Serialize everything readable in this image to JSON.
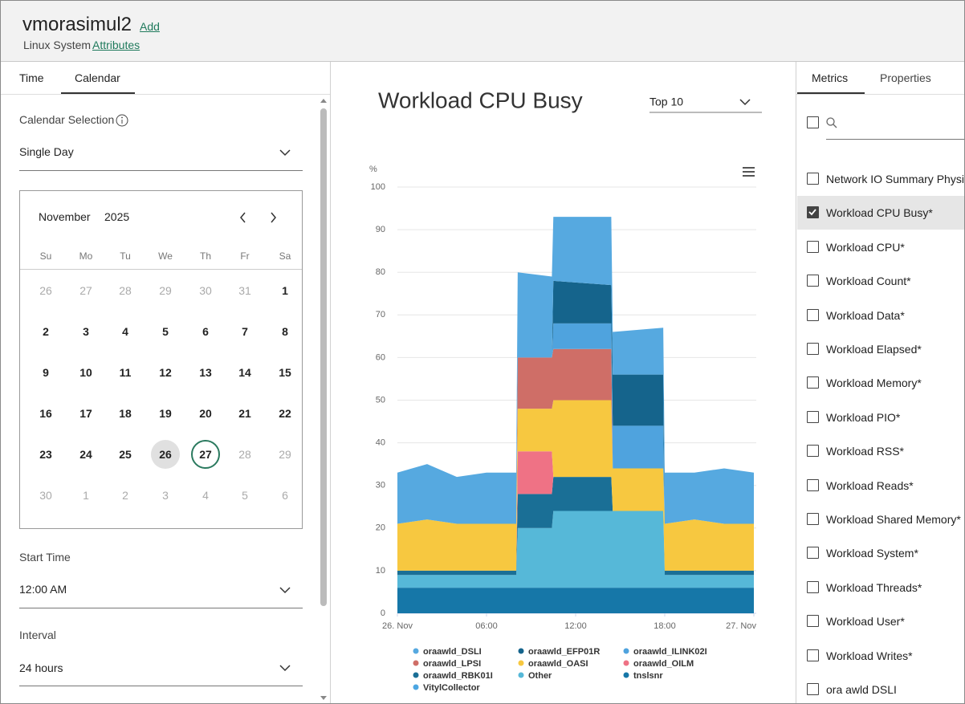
{
  "header": {
    "title": "vmorasimul2",
    "add_link": "Add",
    "subtitle": "Linux System",
    "attributes_link": "Attributes"
  },
  "left_tabs": [
    "Time",
    "Calendar"
  ],
  "calendar": {
    "selection_label": "Calendar Selection",
    "mode": "Single Day",
    "month": "November",
    "year": "2025",
    "weekdays": [
      "Su",
      "Mo",
      "Tu",
      "We",
      "Th",
      "Fr",
      "Sa"
    ],
    "weeks": [
      [
        "26",
        "27",
        "28",
        "29",
        "30",
        "31",
        "1"
      ],
      [
        "2",
        "3",
        "4",
        "5",
        "6",
        "7",
        "8"
      ],
      [
        "9",
        "10",
        "11",
        "12",
        "13",
        "14",
        "15"
      ],
      [
        "16",
        "17",
        "18",
        "19",
        "20",
        "21",
        "22"
      ],
      [
        "23",
        "24",
        "25",
        "26",
        "27",
        "28",
        "29"
      ],
      [
        "30",
        "1",
        "2",
        "3",
        "4",
        "5",
        "6"
      ]
    ]
  },
  "start_time": {
    "label": "Start Time",
    "value": "12:00 AM"
  },
  "interval": {
    "label": "Interval",
    "value": "24 hours"
  },
  "right_tabs": [
    "Metrics",
    "Properties"
  ],
  "metrics": [
    {
      "label": "Network IO Summary Physi",
      "checked": false
    },
    {
      "label": "Workload CPU Busy*",
      "checked": true
    },
    {
      "label": "Workload CPU*",
      "checked": false
    },
    {
      "label": "Workload Count*",
      "checked": false
    },
    {
      "label": "Workload Data*",
      "checked": false
    },
    {
      "label": "Workload Elapsed*",
      "checked": false
    },
    {
      "label": "Workload Memory*",
      "checked": false
    },
    {
      "label": "Workload PIO*",
      "checked": false
    },
    {
      "label": "Workload RSS*",
      "checked": false
    },
    {
      "label": "Workload Reads*",
      "checked": false
    },
    {
      "label": "Workload Shared Memory*",
      "checked": false
    },
    {
      "label": "Workload System*",
      "checked": false
    },
    {
      "label": "Workload Threads*",
      "checked": false
    },
    {
      "label": "Workload User*",
      "checked": false
    },
    {
      "label": "Workload Writes*",
      "checked": false
    },
    {
      "label": "ora awld DSLI",
      "checked": false
    }
  ],
  "chart_data": {
    "type": "area",
    "stacking": "normal",
    "title": "Workload CPU Busy",
    "selector": "Top 10",
    "y_label": "%",
    "x": [
      0,
      2,
      4,
      6,
      8,
      8.1,
      10.4,
      10.5,
      14.4,
      14.5,
      17.9,
      18,
      20,
      22,
      24
    ],
    "xlim": [
      0,
      24
    ],
    "xticks": [
      {
        "value": 0,
        "label": "26. Nov"
      },
      {
        "value": 6,
        "label": "06:00"
      },
      {
        "value": 12,
        "label": "12:00"
      },
      {
        "value": 18,
        "label": "18:00"
      },
      {
        "value": 24,
        "label": "27. Nov"
      }
    ],
    "ylim": [
      0,
      100
    ],
    "yticks": [
      0,
      10,
      20,
      30,
      40,
      50,
      60,
      70,
      80,
      90,
      100
    ],
    "grid": true,
    "series": [
      {
        "name": "oraawld_DSLI",
        "color": "#56a9e0",
        "values": [
          12,
          13,
          11,
          12,
          12,
          20,
          19,
          15,
          16,
          10,
          11,
          12,
          11,
          13,
          12
        ]
      },
      {
        "name": "oraawld_EFP01R",
        "color": "#15648c",
        "values": [
          0,
          0,
          0,
          0,
          0,
          0,
          0,
          10,
          9,
          12,
          12,
          0,
          0,
          0,
          0
        ]
      },
      {
        "name": "oraawld_ILINK02I",
        "color": "#4fa3de",
        "values": [
          0,
          0,
          0,
          0,
          0,
          0,
          0,
          6,
          6,
          10,
          10,
          0,
          0,
          0,
          0
        ]
      },
      {
        "name": "oraawld_LPSI",
        "color": "#cf6e67",
        "values": [
          0,
          0,
          0,
          0,
          0,
          12,
          12,
          12,
          12,
          0,
          0,
          0,
          0,
          0,
          0
        ]
      },
      {
        "name": "oraawld_OASI",
        "color": "#f7c840",
        "values": [
          11,
          12,
          11,
          11,
          11,
          10,
          10,
          18,
          18,
          10,
          10,
          11,
          12,
          11,
          11
        ]
      },
      {
        "name": "oraawld_OILM",
        "color": "#ef7285",
        "values": [
          0,
          0,
          0,
          0,
          0,
          10,
          10,
          0,
          0,
          0,
          0,
          0,
          0,
          0,
          0
        ]
      },
      {
        "name": "oraawld_RBK01I",
        "color": "#1a6f96",
        "values": [
          1,
          1,
          1,
          1,
          1,
          8,
          8,
          8,
          8,
          0,
          0,
          1,
          1,
          1,
          1
        ]
      },
      {
        "name": "Other",
        "color": "#56b8d8",
        "values": [
          3,
          3,
          3,
          3,
          3,
          14,
          14,
          18,
          18,
          18,
          18,
          3,
          3,
          3,
          3
        ]
      },
      {
        "name": "tnslsnr",
        "color": "#1677a8",
        "values": [
          6,
          6,
          6,
          6,
          6,
          6,
          6,
          6,
          6,
          6,
          6,
          6,
          6,
          6,
          6
        ]
      },
      {
        "name": "VitylCollector",
        "color": "#4ca6e2",
        "values": [
          0,
          0,
          0,
          0,
          0,
          0,
          0,
          0,
          0,
          0,
          0,
          0,
          0,
          0,
          0
        ]
      }
    ]
  }
}
